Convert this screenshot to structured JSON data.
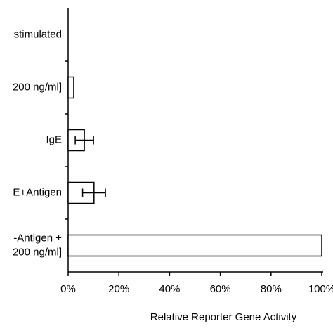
{
  "chart_data": {
    "type": "bar",
    "orientation": "horizontal",
    "categories": [
      "stimulated",
      "200 ng/ml]",
      "IgE",
      "E+Antigen",
      [
        "-Antigen +",
        "200 ng/ml]"
      ]
    ],
    "values": [
      0,
      2.2,
      6.4,
      10.2,
      100
    ],
    "errors": [
      null,
      null,
      3.6,
      4.5,
      null
    ],
    "color": "#ffffff",
    "xlim": [
      0,
      100
    ],
    "xticks": [
      {
        "value": 0,
        "label": "0%"
      },
      {
        "value": 20,
        "label": "20%"
      },
      {
        "value": 40,
        "label": "40%"
      },
      {
        "value": 60,
        "label": "60%"
      },
      {
        "value": 80,
        "label": "80%"
      },
      {
        "value": 100,
        "label": "100%"
      }
    ],
    "xlabel": "Relative Reporter Gene Activity"
  }
}
